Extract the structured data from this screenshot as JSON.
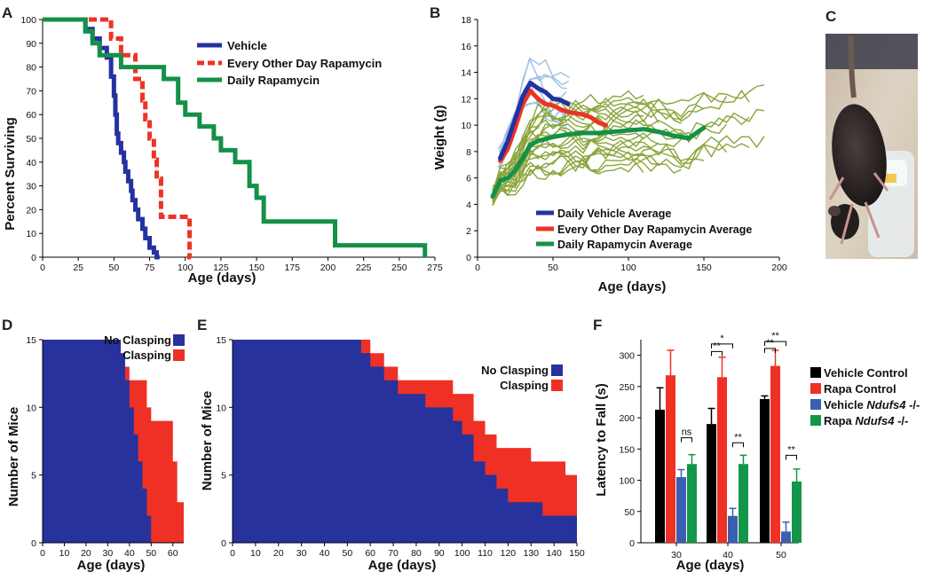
{
  "panels": {
    "A": "A",
    "B": "B",
    "C": "C",
    "D": "D",
    "E": "E",
    "F": "F"
  },
  "colors": {
    "vehicle": "#2432a0",
    "every_other_day": "#ee3224",
    "daily_rapa": "#149048",
    "indiv_vehicle": "#9fc3e6",
    "indiv_rapa": "#8aa53a",
    "no_clasping": "#28329c",
    "clasping": "#ee3124",
    "vehicle_control": "#000000",
    "rapa_control": "#ee3124",
    "vehicle_ndufs4": "#3b5fb0",
    "rapa_ndufs4": "#12964a"
  },
  "photo": {
    "description_icon": "mouse-photo"
  },
  "chart_data": [
    {
      "id": "A",
      "type": "line",
      "step": true,
      "xlabel": "Age (days)",
      "ylabel": "Percent Surviving",
      "xlim": [
        0,
        275
      ],
      "ylim": [
        0,
        100
      ],
      "xticks": [
        0,
        25,
        50,
        75,
        100,
        125,
        150,
        175,
        200,
        225,
        250,
        275
      ],
      "yticks": [
        0,
        10,
        20,
        30,
        40,
        50,
        60,
        70,
        80,
        90,
        100
      ],
      "legend_position": "top-right",
      "series": [
        {
          "name": "Vehicle",
          "color": "#2432a0",
          "dash": false,
          "x": [
            0,
            27,
            30,
            35,
            40,
            45,
            48,
            50,
            51,
            52,
            53,
            55,
            57,
            58,
            60,
            62,
            63,
            65,
            67,
            70,
            72,
            75,
            78,
            80,
            82
          ],
          "y": [
            100,
            100,
            96,
            92,
            88,
            84,
            76,
            68,
            60,
            52,
            48,
            44,
            40,
            36,
            32,
            28,
            24,
            20,
            16,
            12,
            8,
            4,
            2,
            0,
            0
          ]
        },
        {
          "name": "Every Other Day Rapamycin",
          "color": "#ee3224",
          "dash": true,
          "x": [
            0,
            43,
            48,
            55,
            60,
            65,
            70,
            72,
            75,
            78,
            80,
            83,
            92,
            103,
            104
          ],
          "y": [
            100,
            100,
            92,
            85,
            85,
            75,
            66,
            58,
            50,
            41,
            33,
            17,
            17,
            0,
            0
          ]
        },
        {
          "name": "Daily Rapamycin",
          "color": "#149048",
          "dash": false,
          "x": [
            0,
            25,
            30,
            35,
            40,
            45,
            50,
            55,
            75,
            85,
            95,
            100,
            110,
            120,
            125,
            135,
            145,
            150,
            155,
            195,
            205,
            268,
            268
          ],
          "y": [
            100,
            100,
            95,
            90,
            85,
            85,
            85,
            80,
            80,
            75,
            65,
            60,
            55,
            50,
            45,
            40,
            30,
            25,
            15,
            15,
            5,
            5,
            0
          ]
        }
      ]
    },
    {
      "id": "B",
      "type": "line",
      "xlabel": "Age (days)",
      "ylabel": "Weight (g)",
      "xlim": [
        0,
        200
      ],
      "ylim": [
        0,
        18
      ],
      "xticks": [
        0,
        50,
        100,
        150,
        200
      ],
      "yticks": [
        0,
        2,
        4,
        6,
        8,
        10,
        12,
        14,
        16,
        18
      ],
      "legend_position": "bottom-center",
      "series": [
        {
          "name": "Daily Vehicle Average",
          "color": "#2432a0",
          "x": [
            15,
            20,
            25,
            30,
            35,
            40,
            45,
            50,
            55,
            60
          ],
          "y": [
            7.5,
            8.8,
            10.5,
            12.2,
            13.2,
            12.8,
            12.5,
            12.0,
            11.9,
            11.6
          ]
        },
        {
          "name": "Every Other Day Rapamycin Average",
          "color": "#ee3224",
          "x": [
            15,
            20,
            25,
            30,
            35,
            40,
            45,
            50,
            55,
            60,
            65,
            70,
            75,
            80,
            85
          ],
          "y": [
            7.3,
            8.2,
            9.8,
            11.6,
            12.6,
            12.0,
            11.6,
            11.5,
            11.2,
            11.0,
            10.9,
            10.8,
            10.6,
            10.2,
            10.0
          ]
        },
        {
          "name": "Daily Rapamycin Average",
          "color": "#149048",
          "x": [
            10,
            15,
            20,
            25,
            30,
            35,
            40,
            50,
            60,
            70,
            80,
            90,
            100,
            110,
            120,
            130,
            140,
            150
          ],
          "y": [
            4.6,
            5.8,
            6.0,
            6.6,
            7.5,
            8.5,
            8.8,
            9.1,
            9.3,
            9.4,
            9.4,
            9.5,
            9.6,
            9.7,
            9.5,
            9.2,
            9.0,
            9.8
          ]
        }
      ]
    },
    {
      "id": "D",
      "type": "area",
      "xlabel": "Age (days)",
      "ylabel": "Number of Mice",
      "xlim": [
        0,
        65
      ],
      "ylim": [
        0,
        15
      ],
      "xticks": [
        0,
        10,
        20,
        30,
        40,
        50,
        60
      ],
      "yticks": [
        0,
        5,
        10,
        15
      ],
      "legend_position": "top-right",
      "series": [
        {
          "name": "No Clasping",
          "color": "#28329c",
          "x": [
            0,
            34,
            36,
            38,
            40,
            42,
            44,
            46,
            48,
            50,
            65
          ],
          "y": [
            15,
            15,
            14,
            12,
            10,
            8,
            6,
            4,
            2,
            0,
            0
          ]
        },
        {
          "name": "Clasping",
          "color": "#ee3124",
          "x": [
            0,
            34,
            36,
            40,
            44,
            48,
            50,
            56,
            60,
            62,
            65
          ],
          "y": [
            15,
            15,
            13,
            12,
            12,
            10,
            9,
            9,
            6,
            3,
            0
          ]
        }
      ]
    },
    {
      "id": "E",
      "type": "area",
      "xlabel": "Age (days)",
      "ylabel": "Number of Mice",
      "xlim": [
        0,
        150
      ],
      "ylim": [
        0,
        15
      ],
      "xticks": [
        0,
        10,
        20,
        30,
        40,
        50,
        60,
        70,
        80,
        90,
        100,
        110,
        120,
        130,
        140,
        150
      ],
      "yticks": [
        0,
        5,
        10,
        15
      ],
      "legend_position": "top-right",
      "series": [
        {
          "name": "No Clasping",
          "color": "#28329c",
          "x": [
            0,
            52,
            56,
            60,
            66,
            72,
            78,
            84,
            90,
            96,
            100,
            105,
            110,
            115,
            120,
            125,
            130,
            135,
            140,
            145,
            150
          ],
          "y": [
            15,
            15,
            14,
            13,
            12,
            11,
            11,
            10,
            10,
            9,
            8,
            6,
            5,
            4,
            3,
            3,
            3,
            2,
            2,
            2,
            2
          ]
        },
        {
          "name": "Clasping",
          "color": "#ee3124",
          "x": [
            0,
            52,
            56,
            60,
            66,
            72,
            78,
            84,
            90,
            96,
            100,
            105,
            110,
            115,
            120,
            125,
            130,
            135,
            140,
            145,
            150
          ],
          "y": [
            15,
            15,
            15,
            14,
            13,
            12,
            12,
            12,
            12,
            11,
            11,
            9,
            8,
            7,
            7,
            7,
            6,
            6,
            6,
            5,
            5
          ]
        }
      ]
    },
    {
      "id": "F",
      "type": "bar",
      "xlabel": "Age (days)",
      "ylabel": "Latency to Fall (s)",
      "ylim": [
        0,
        325
      ],
      "yticks": [
        0,
        50,
        100,
        150,
        200,
        250,
        300
      ],
      "categories": [
        "30",
        "40",
        "50"
      ],
      "legend_position": "right",
      "series": [
        {
          "name": "Vehicle Control",
          "color": "#000000",
          "values": [
            213,
            190,
            230
          ],
          "errors": [
            35,
            25,
            5
          ]
        },
        {
          "name": "Rapa Control",
          "color": "#ee3124",
          "values": [
            268,
            265,
            283
          ],
          "errors": [
            40,
            32,
            25
          ]
        },
        {
          "name": "Vehicle Ndufs4 -/-",
          "color": "#3b5fb0",
          "values": [
            105,
            43,
            18
          ],
          "errors": [
            12,
            12,
            15
          ]
        },
        {
          "name": "Rapa Ndufs4 -/-",
          "color": "#12964a",
          "values": [
            126,
            126,
            98
          ],
          "errors": [
            15,
            14,
            20
          ]
        }
      ],
      "annotations": [
        "ns",
        "*",
        "**",
        "**",
        "**",
        "**",
        "**"
      ]
    }
  ],
  "legends": {
    "B": [
      "Daily Vehicle Average",
      "Every Other Day Rapamycin Average",
      "Daily Rapamycin Average"
    ],
    "F_vehicle_ndufs4_prefix": "Vehicle ",
    "F_rapa_ndufs4_prefix": "Rapa ",
    "F_gene": "Ndufs4",
    "F_suffix": " -/-"
  }
}
